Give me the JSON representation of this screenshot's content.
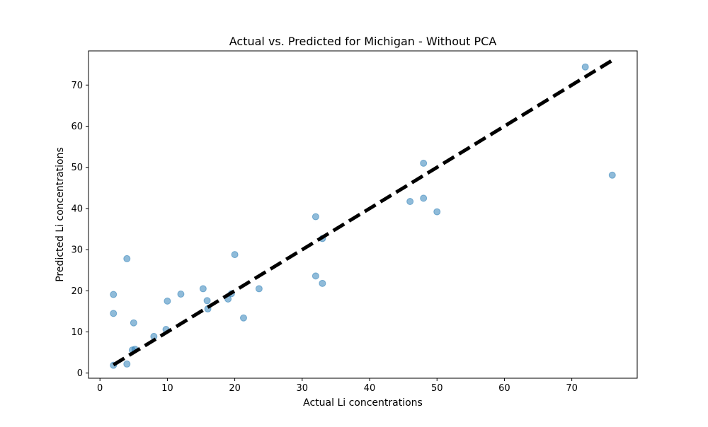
{
  "chart_data": {
    "type": "scatter",
    "title": "Actual vs. Predicted for Michigan - Without PCA",
    "xlabel": "Actual Li concentrations",
    "ylabel": "Predicted Li concentrations",
    "xlim": [
      -1.7,
      79.7
    ],
    "ylim": [
      -1.25,
      78.3
    ],
    "xticks": [
      0,
      10,
      20,
      30,
      40,
      50,
      60,
      70
    ],
    "yticks": [
      0,
      10,
      20,
      30,
      40,
      50,
      60,
      70
    ],
    "grid": false,
    "series": [
      {
        "kind": "points",
        "color": "#1f77b4",
        "alpha": 0.5,
        "points": [
          [
            2.0,
            1.9
          ],
          [
            4.0,
            2.2
          ],
          [
            4.8,
            5.6
          ],
          [
            5.2,
            5.8
          ],
          [
            8.0,
            8.9
          ],
          [
            9.8,
            10.6
          ],
          [
            2.0,
            14.5
          ],
          [
            5.0,
            12.2
          ],
          [
            2.0,
            19.1
          ],
          [
            4.0,
            27.8
          ],
          [
            10.0,
            17.5
          ],
          [
            12.0,
            19.2
          ],
          [
            15.3,
            20.5
          ],
          [
            15.9,
            17.6
          ],
          [
            16.0,
            15.6
          ],
          [
            19.0,
            18.0
          ],
          [
            19.5,
            19.3
          ],
          [
            20.0,
            28.8
          ],
          [
            21.3,
            13.4
          ],
          [
            23.6,
            20.5
          ],
          [
            32.0,
            38.0
          ],
          [
            32.0,
            23.6
          ],
          [
            33.0,
            21.8
          ],
          [
            33.0,
            32.7
          ],
          [
            46.0,
            41.7
          ],
          [
            48.0,
            51.0
          ],
          [
            48.0,
            42.5
          ],
          [
            50.0,
            39.2
          ],
          [
            72.0,
            74.4
          ],
          [
            76.0,
            48.1
          ]
        ]
      },
      {
        "kind": "reference-line",
        "style": "dashed",
        "color": "#000000",
        "points": [
          [
            2.0,
            2.0
          ],
          [
            76.0,
            76.0
          ]
        ]
      }
    ]
  }
}
